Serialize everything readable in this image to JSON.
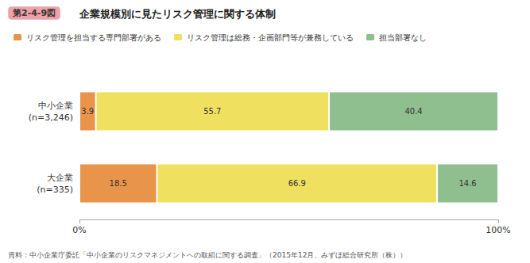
{
  "chart_data": {
    "type": "bar",
    "title": "企業規模別に見たリスク管理に関する体制",
    "annotations": [
      "第2-4-9図",
      "資料：中小企業庁委託「中小企業のリスクマネジメントへの取組に関する調査」（2015年12月、みずほ総合研究所（株））"
    ],
    "orientation": "horizontal",
    "stacked": true,
    "data_labels": true,
    "grid": false,
    "legend": "top",
    "categories": [
      "中小企業\n(n=3,246)",
      "大企業\n(n=335)"
    ],
    "series": [
      {
        "name": "リスク管理を担当する専門部署がある",
        "color": "#E8944A",
        "values": [
          3.9,
          18.5
        ]
      },
      {
        "name": "リスク管理は総務・企画部門等が兼務している",
        "color": "#F0E060",
        "values": [
          55.7,
          66.9
        ]
      },
      {
        "name": "担当部署なし",
        "color": "#8FBF8F",
        "values": [
          40.4,
          14.6
        ]
      }
    ],
    "xlim": [
      0,
      100
    ],
    "xticks": [
      {
        "value": 0,
        "label": "0%"
      },
      {
        "value": 100,
        "label": "100%"
      }
    ]
  }
}
